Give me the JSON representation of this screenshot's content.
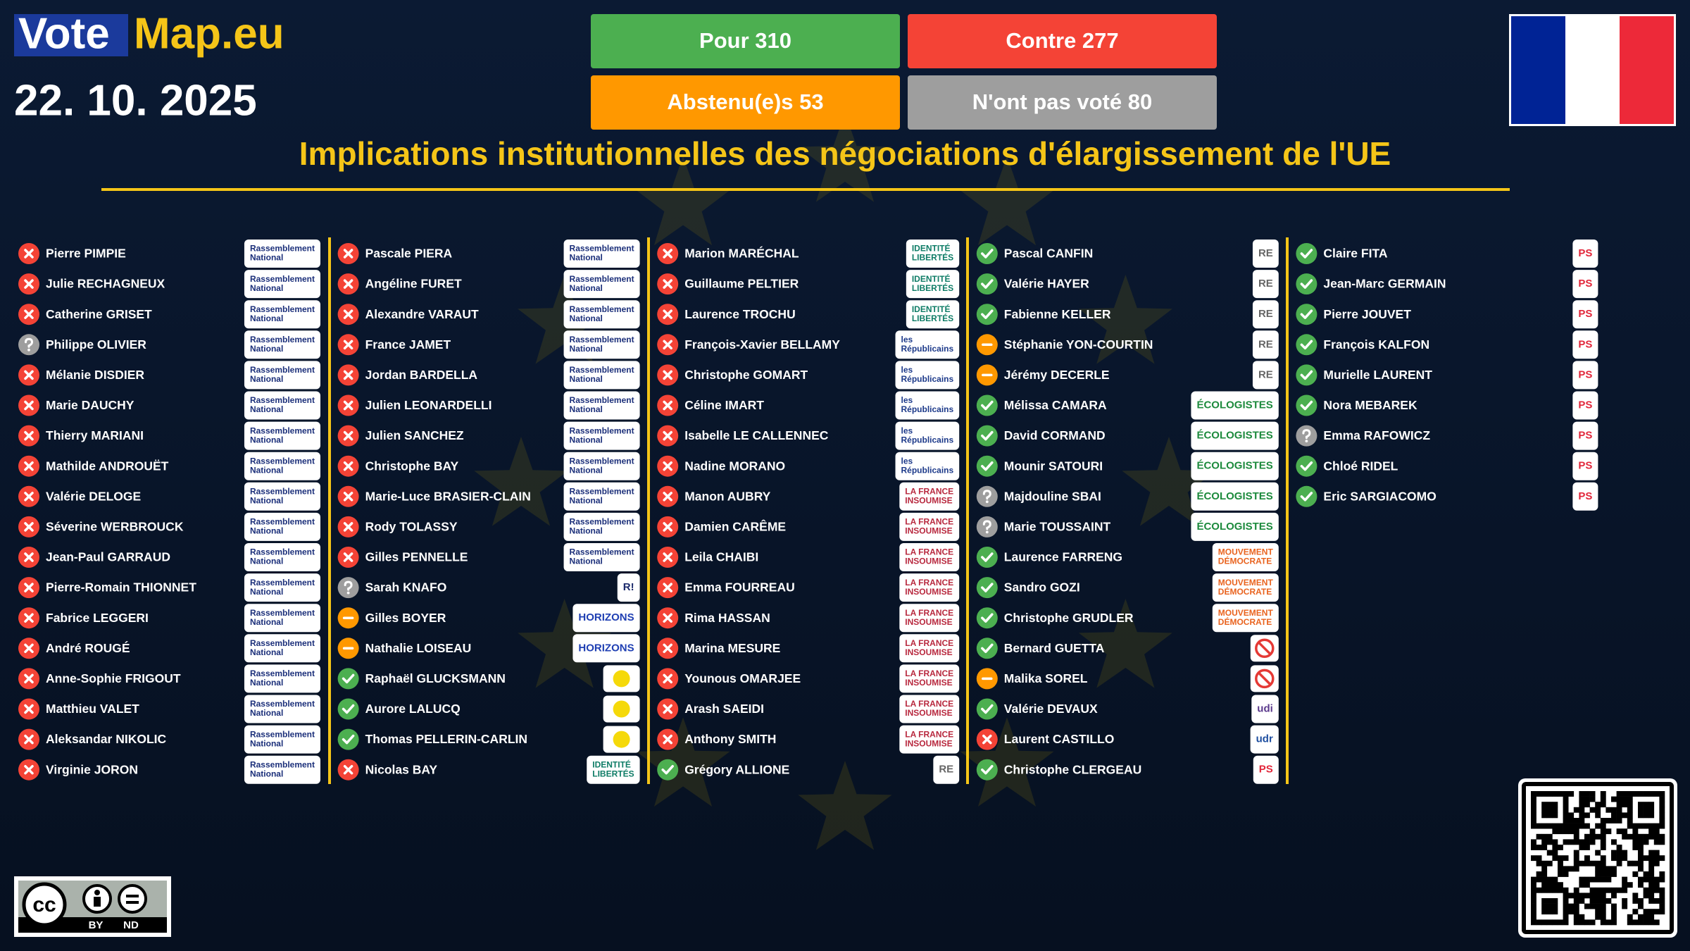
{
  "header": {
    "logo_left": "Vote",
    "logo_right": "Map.eu",
    "date": "22. 10. 2025"
  },
  "tallies": [
    {
      "text": "Pour 310",
      "vote": "for"
    },
    {
      "text": "Contre 277",
      "vote": "against"
    },
    {
      "text": "Abstenu(e)s 53",
      "vote": "abstain"
    },
    {
      "text": "N'ont pas voté 80",
      "vote": "absent"
    }
  ],
  "title": "Implications institutionnelles des négociations d'élargissement de l'UE",
  "vote_colors": {
    "for": "#4caf50",
    "against": "#f44336",
    "abstain": "#ff9800",
    "absent": "#9e9e9e"
  },
  "logos": [
    {
      "lines": [
        "Rassemblement",
        "National"
      ],
      "color": "#1b2f7a"
    },
    {
      "lines": [
        "IDENTITÉ",
        "LIBERTÉS"
      ],
      "color": "#0e7c66"
    },
    {
      "lines": [
        "les",
        "Républicains"
      ],
      "color": "#1d3a8a"
    },
    {
      "lines": [
        "LA FRANCE",
        "INSOUMISE"
      ],
      "color": "#b8283e"
    },
    {
      "lines": [
        "RE"
      ],
      "color": "#666666"
    },
    {
      "lines": [
        "ÉCOLOGISTES"
      ],
      "color": "#1c8a3c"
    },
    {
      "lines": [
        "MOUVEMENT",
        "DÉMOCRATE"
      ],
      "color": "#e9631e"
    },
    {
      "lines": [
        "PS"
      ],
      "color": "#e2263a"
    },
    {
      "lines": [
        "R!"
      ],
      "color": "#1b2a6b"
    },
    {
      "lines": [
        "HORIZONS"
      ],
      "color": "#1f3fb3"
    },
    {
      "shape": "dot",
      "color": "#f5d90a"
    },
    {
      "shape": "forbidden",
      "color": "#e53935"
    },
    {
      "lines": [
        "udi"
      ],
      "color": "#5b3a8c"
    },
    {
      "lines": [
        "udr"
      ],
      "color": "#1f4fa0"
    }
  ],
  "columns": [
    [
      {
        "name": "Pierre PIMPIE",
        "vote": "against",
        "logo": 0
      },
      {
        "name": "Julie RECHAGNEUX",
        "vote": "against",
        "logo": 0
      },
      {
        "name": "Catherine GRISET",
        "vote": "against",
        "logo": 0
      },
      {
        "name": "Philippe OLIVIER",
        "vote": "absent",
        "logo": 0
      },
      {
        "name": "Mélanie DISDIER",
        "vote": "against",
        "logo": 0
      },
      {
        "name": "Marie DAUCHY",
        "vote": "against",
        "logo": 0
      },
      {
        "name": "Thierry MARIANI",
        "vote": "against",
        "logo": 0
      },
      {
        "name": "Mathilde ANDROUËT",
        "vote": "against",
        "logo": 0
      },
      {
        "name": "Valérie DELOGE",
        "vote": "against",
        "logo": 0
      },
      {
        "name": "Séverine WERBROUCK",
        "vote": "against",
        "logo": 0
      },
      {
        "name": "Jean-Paul GARRAUD",
        "vote": "against",
        "logo": 0
      },
      {
        "name": "Pierre-Romain THIONNET",
        "vote": "against",
        "logo": 0
      },
      {
        "name": "Fabrice LEGGERI",
        "vote": "against",
        "logo": 0
      },
      {
        "name": "André ROUGÉ",
        "vote": "against",
        "logo": 0
      },
      {
        "name": "Anne-Sophie FRIGOUT",
        "vote": "against",
        "logo": 0
      },
      {
        "name": "Matthieu VALET",
        "vote": "against",
        "logo": 0
      },
      {
        "name": "Aleksandar NIKOLIC",
        "vote": "against",
        "logo": 0
      },
      {
        "name": "Virginie JORON",
        "vote": "against",
        "logo": 0
      }
    ],
    [
      {
        "name": "Pascale PIERA",
        "vote": "against",
        "logo": 0
      },
      {
        "name": "Angéline FURET",
        "vote": "against",
        "logo": 0
      },
      {
        "name": "Alexandre VARAUT",
        "vote": "against",
        "logo": 0
      },
      {
        "name": "France JAMET",
        "vote": "against",
        "logo": 0
      },
      {
        "name": "Jordan BARDELLA",
        "vote": "against",
        "logo": 0
      },
      {
        "name": "Julien LEONARDELLI",
        "vote": "against",
        "logo": 0
      },
      {
        "name": "Julien SANCHEZ",
        "vote": "against",
        "logo": 0
      },
      {
        "name": "Christophe BAY",
        "vote": "against",
        "logo": 0
      },
      {
        "name": "Marie-Luce BRASIER-CLAIN",
        "vote": "against",
        "logo": 0
      },
      {
        "name": "Rody TOLASSY",
        "vote": "against",
        "logo": 0
      },
      {
        "name": "Gilles PENNELLE",
        "vote": "against",
        "logo": 0
      },
      {
        "name": "Sarah KNAFO",
        "vote": "absent",
        "logo": 8
      },
      {
        "name": "Gilles BOYER",
        "vote": "abstain",
        "logo": 9
      },
      {
        "name": "Nathalie LOISEAU",
        "vote": "abstain",
        "logo": 9
      },
      {
        "name": "Raphaël GLUCKSMANN",
        "vote": "for",
        "logo": 10
      },
      {
        "name": "Aurore LALUCQ",
        "vote": "for",
        "logo": 10
      },
      {
        "name": "Thomas PELLERIN-CARLIN",
        "vote": "for",
        "logo": 10
      },
      {
        "name": "Nicolas BAY",
        "vote": "against",
        "logo": 1
      }
    ],
    [
      {
        "name": "Marion MARÉCHAL",
        "vote": "against",
        "logo": 1
      },
      {
        "name": "Guillaume PELTIER",
        "vote": "against",
        "logo": 1
      },
      {
        "name": "Laurence TROCHU",
        "vote": "against",
        "logo": 1
      },
      {
        "name": "François-Xavier BELLAMY",
        "vote": "against",
        "logo": 2
      },
      {
        "name": "Christophe GOMART",
        "vote": "against",
        "logo": 2
      },
      {
        "name": "Céline IMART",
        "vote": "against",
        "logo": 2
      },
      {
        "name": "Isabelle LE CALLENNEC",
        "vote": "against",
        "logo": 2
      },
      {
        "name": "Nadine MORANO",
        "vote": "against",
        "logo": 2
      },
      {
        "name": "Manon AUBRY",
        "vote": "against",
        "logo": 3
      },
      {
        "name": "Damien CARÊME",
        "vote": "against",
        "logo": 3
      },
      {
        "name": "Leila CHAIBI",
        "vote": "against",
        "logo": 3
      },
      {
        "name": "Emma FOURREAU",
        "vote": "against",
        "logo": 3
      },
      {
        "name": "Rima HASSAN",
        "vote": "against",
        "logo": 3
      },
      {
        "name": "Marina MESURE",
        "vote": "against",
        "logo": 3
      },
      {
        "name": "Younous OMARJEE",
        "vote": "against",
        "logo": 3
      },
      {
        "name": "Arash SAEIDI",
        "vote": "against",
        "logo": 3
      },
      {
        "name": "Anthony SMITH",
        "vote": "against",
        "logo": 3
      },
      {
        "name": "Grégory ALLIONE",
        "vote": "for",
        "logo": 4
      }
    ],
    [
      {
        "name": "Pascal CANFIN",
        "vote": "for",
        "logo": 4
      },
      {
        "name": "Valérie HAYER",
        "vote": "for",
        "logo": 4
      },
      {
        "name": "Fabienne KELLER",
        "vote": "for",
        "logo": 4
      },
      {
        "name": "Stéphanie YON-COURTIN",
        "vote": "abstain",
        "logo": 4
      },
      {
        "name": "Jérémy DECERLE",
        "vote": "abstain",
        "logo": 4
      },
      {
        "name": "Mélissa CAMARA",
        "vote": "for",
        "logo": 5
      },
      {
        "name": "David CORMAND",
        "vote": "for",
        "logo": 5
      },
      {
        "name": "Mounir SATOURI",
        "vote": "for",
        "logo": 5
      },
      {
        "name": "Majdouline SBAI",
        "vote": "absent",
        "logo": 5
      },
      {
        "name": "Marie TOUSSAINT",
        "vote": "absent",
        "logo": 5
      },
      {
        "name": "Laurence FARRENG",
        "vote": "for",
        "logo": 6
      },
      {
        "name": "Sandro GOZI",
        "vote": "for",
        "logo": 6
      },
      {
        "name": "Christophe GRUDLER",
        "vote": "for",
        "logo": 6
      },
      {
        "name": "Bernard GUETTA",
        "vote": "for",
        "logo": 11
      },
      {
        "name": "Malika SOREL",
        "vote": "abstain",
        "logo": 11
      },
      {
        "name": "Valérie DEVAUX",
        "vote": "for",
        "logo": 12
      },
      {
        "name": "Laurent CASTILLO",
        "vote": "against",
        "logo": 13
      },
      {
        "name": "Christophe CLERGEAU",
        "vote": "for",
        "logo": 7
      }
    ],
    [
      {
        "name": "Claire FITA",
        "vote": "for",
        "logo": 7
      },
      {
        "name": "Jean-Marc GERMAIN",
        "vote": "for",
        "logo": 7
      },
      {
        "name": "Pierre JOUVET",
        "vote": "for",
        "logo": 7
      },
      {
        "name": "François KALFON",
        "vote": "for",
        "logo": 7
      },
      {
        "name": "Murielle LAURENT",
        "vote": "for",
        "logo": 7
      },
      {
        "name": "Nora MEBAREK",
        "vote": "for",
        "logo": 7
      },
      {
        "name": "Emma RAFOWICZ",
        "vote": "absent",
        "logo": 7
      },
      {
        "name": "Chloé RIDEL",
        "vote": "for",
        "logo": 7
      },
      {
        "name": "Eric SARGIACOMO",
        "vote": "for",
        "logo": 7
      }
    ]
  ],
  "license": {
    "symbol": "cc",
    "labels": [
      "BY",
      "ND"
    ]
  }
}
